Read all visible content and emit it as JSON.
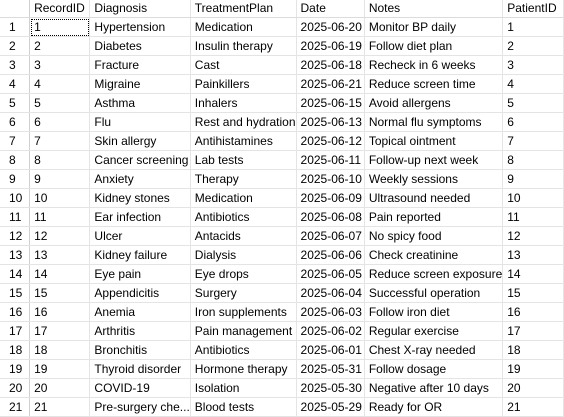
{
  "columns": [
    "",
    "RecordID",
    "Diagnosis",
    "TreatmentPlan",
    "Date",
    "Notes",
    "PatientID"
  ],
  "rows": [
    [
      "1",
      "1",
      "Hypertension",
      "Medication",
      "2025-06-20",
      "Monitor BP daily",
      "1"
    ],
    [
      "2",
      "2",
      "Diabetes",
      "Insulin therapy",
      "2025-06-19",
      "Follow diet plan",
      "2"
    ],
    [
      "3",
      "3",
      "Fracture",
      "Cast",
      "2025-06-18",
      "Recheck in 6 weeks",
      "3"
    ],
    [
      "4",
      "4",
      "Migraine",
      "Painkillers",
      "2025-06-21",
      "Reduce screen time",
      "4"
    ],
    [
      "5",
      "5",
      "Asthma",
      "Inhalers",
      "2025-06-15",
      "Avoid allergens",
      "5"
    ],
    [
      "6",
      "6",
      "Flu",
      "Rest and hydration",
      "2025-06-13",
      "Normal flu symptoms",
      "6"
    ],
    [
      "7",
      "7",
      "Skin allergy",
      "Antihistamines",
      "2025-06-12",
      "Topical ointment",
      "7"
    ],
    [
      "8",
      "8",
      "Cancer screening",
      "Lab tests",
      "2025-06-11",
      "Follow-up next week",
      "8"
    ],
    [
      "9",
      "9",
      "Anxiety",
      "Therapy",
      "2025-06-10",
      "Weekly sessions",
      "9"
    ],
    [
      "10",
      "10",
      "Kidney stones",
      "Medication",
      "2025-06-09",
      "Ultrasound needed",
      "10"
    ],
    [
      "11",
      "11",
      "Ear infection",
      "Antibiotics",
      "2025-06-08",
      "Pain reported",
      "11"
    ],
    [
      "12",
      "12",
      "Ulcer",
      "Antacids",
      "2025-06-07",
      "No spicy food",
      "12"
    ],
    [
      "13",
      "13",
      "Kidney failure",
      "Dialysis",
      "2025-06-06",
      "Check creatinine",
      "13"
    ],
    [
      "14",
      "14",
      "Eye pain",
      "Eye drops",
      "2025-06-05",
      "Reduce screen exposure",
      "14"
    ],
    [
      "15",
      "15",
      "Appendicitis",
      "Surgery",
      "2025-06-04",
      "Successful operation",
      "15"
    ],
    [
      "16",
      "16",
      "Anemia",
      "Iron supplements",
      "2025-06-03",
      "Follow iron diet",
      "16"
    ],
    [
      "17",
      "17",
      "Arthritis",
      "Pain management",
      "2025-06-02",
      "Regular exercise",
      "17"
    ],
    [
      "18",
      "18",
      "Bronchitis",
      "Antibiotics",
      "2025-06-01",
      "Chest X-ray needed",
      "18"
    ],
    [
      "19",
      "19",
      "Thyroid disorder",
      "Hormone therapy",
      "2025-05-31",
      "Follow dosage",
      "19"
    ],
    [
      "20",
      "20",
      "COVID-19",
      "Isolation",
      "2025-05-30",
      "Negative after 10 days",
      "20"
    ],
    [
      "21",
      "21",
      "Pre-surgery che...",
      "Blood tests",
      "2025-05-29",
      "Ready for OR",
      "21"
    ]
  ],
  "selected_cell": {
    "row": 0,
    "col": 1
  }
}
